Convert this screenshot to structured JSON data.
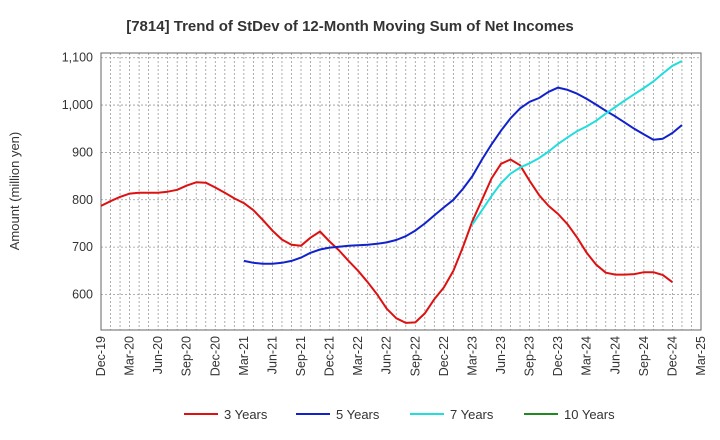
{
  "chart_data": {
    "type": "line",
    "title": "[7814]  Trend of StDev of 12-Month Moving Sum of Net Incomes",
    "xlabel": "",
    "ylabel": "Amount (million yen)",
    "ylim": [
      525,
      1110
    ],
    "yticks": [
      600,
      700,
      800,
      900,
      1000,
      1100
    ],
    "ytick_labels": [
      "600",
      "700",
      "800",
      "900",
      "1,000",
      "1,100"
    ],
    "x_start": "2019-12",
    "x_end": "2025-03",
    "xtick_labels": [
      "Dec-19",
      "Mar-20",
      "Jun-20",
      "Sep-20",
      "Dec-20",
      "Mar-21",
      "Jun-21",
      "Sep-21",
      "Dec-21",
      "Mar-22",
      "Jun-22",
      "Sep-22",
      "Dec-22",
      "Mar-23",
      "Jun-23",
      "Sep-23",
      "Dec-23",
      "Mar-24",
      "Jun-24",
      "Sep-24",
      "Dec-24",
      "Mar-25"
    ],
    "grid": true,
    "legend_position": "bottom",
    "series": [
      {
        "name": "3 Years",
        "color": "#dd1111",
        "points": [
          [
            "2019-12",
            787
          ],
          [
            "2020-01",
            797
          ],
          [
            "2020-02",
            806
          ],
          [
            "2020-03",
            813
          ],
          [
            "2020-04",
            815
          ],
          [
            "2020-05",
            815
          ],
          [
            "2020-06",
            815
          ],
          [
            "2020-07",
            817
          ],
          [
            "2020-08",
            821
          ],
          [
            "2020-09",
            830
          ],
          [
            "2020-10",
            837
          ],
          [
            "2020-11",
            836
          ],
          [
            "2020-12",
            826
          ],
          [
            "2021-01",
            815
          ],
          [
            "2021-02",
            803
          ],
          [
            "2021-03",
            793
          ],
          [
            "2021-04",
            778
          ],
          [
            "2021-05",
            757
          ],
          [
            "2021-06",
            735
          ],
          [
            "2021-07",
            716
          ],
          [
            "2021-08",
            705
          ],
          [
            "2021-09",
            703
          ],
          [
            "2021-10",
            720
          ],
          [
            "2021-11",
            733
          ],
          [
            "2021-12",
            712
          ],
          [
            "2022-01",
            693
          ],
          [
            "2022-02",
            671
          ],
          [
            "2022-03",
            650
          ],
          [
            "2022-04",
            626
          ],
          [
            "2022-05",
            600
          ],
          [
            "2022-06",
            570
          ],
          [
            "2022-07",
            550
          ],
          [
            "2022-08",
            540
          ],
          [
            "2022-09",
            541
          ],
          [
            "2022-10",
            560
          ],
          [
            "2022-11",
            590
          ],
          [
            "2022-12",
            615
          ],
          [
            "2023-01",
            650
          ],
          [
            "2023-02",
            700
          ],
          [
            "2023-03",
            755
          ],
          [
            "2023-04",
            800
          ],
          [
            "2023-05",
            845
          ],
          [
            "2023-06",
            876
          ],
          [
            "2023-07",
            885
          ],
          [
            "2023-08",
            873
          ],
          [
            "2023-09",
            840
          ],
          [
            "2023-10",
            810
          ],
          [
            "2023-11",
            787
          ],
          [
            "2023-12",
            770
          ],
          [
            "2024-01",
            748
          ],
          [
            "2024-02",
            720
          ],
          [
            "2024-03",
            688
          ],
          [
            "2024-04",
            663
          ],
          [
            "2024-05",
            646
          ],
          [
            "2024-06",
            642
          ],
          [
            "2024-07",
            642
          ],
          [
            "2024-08",
            643
          ],
          [
            "2024-09",
            647
          ],
          [
            "2024-10",
            647
          ],
          [
            "2024-11",
            641
          ],
          [
            "2024-12",
            626
          ]
        ]
      },
      {
        "name": "5 Years",
        "color": "#1122cc",
        "points": [
          [
            "2021-03",
            671
          ],
          [
            "2021-04",
            667
          ],
          [
            "2021-05",
            665
          ],
          [
            "2021-06",
            665
          ],
          [
            "2021-07",
            667
          ],
          [
            "2021-08",
            671
          ],
          [
            "2021-09",
            678
          ],
          [
            "2021-10",
            688
          ],
          [
            "2021-11",
            695
          ],
          [
            "2021-12",
            699
          ],
          [
            "2022-01",
            701
          ],
          [
            "2022-02",
            703
          ],
          [
            "2022-03",
            704
          ],
          [
            "2022-04",
            705
          ],
          [
            "2022-05",
            707
          ],
          [
            "2022-06",
            710
          ],
          [
            "2022-07",
            715
          ],
          [
            "2022-08",
            723
          ],
          [
            "2022-09",
            735
          ],
          [
            "2022-10",
            750
          ],
          [
            "2022-11",
            767
          ],
          [
            "2022-12",
            784
          ],
          [
            "2023-01",
            800
          ],
          [
            "2023-02",
            823
          ],
          [
            "2023-03",
            850
          ],
          [
            "2023-04",
            885
          ],
          [
            "2023-05",
            917
          ],
          [
            "2023-06",
            946
          ],
          [
            "2023-07",
            972
          ],
          [
            "2023-08",
            993
          ],
          [
            "2023-09",
            1007
          ],
          [
            "2023-10",
            1015
          ],
          [
            "2023-11",
            1028
          ],
          [
            "2023-12",
            1037
          ],
          [
            "2024-01",
            1032
          ],
          [
            "2024-02",
            1024
          ],
          [
            "2024-03",
            1013
          ],
          [
            "2024-04",
            1001
          ],
          [
            "2024-05",
            988
          ],
          [
            "2024-06",
            976
          ],
          [
            "2024-07",
            963
          ],
          [
            "2024-08",
            950
          ],
          [
            "2024-09",
            938
          ],
          [
            "2024-10",
            927
          ],
          [
            "2024-11",
            929
          ],
          [
            "2024-12",
            941
          ],
          [
            "2025-01",
            958
          ]
        ]
      },
      {
        "name": "7 Years",
        "color": "#22dddd",
        "points": [
          [
            "2023-03",
            748
          ],
          [
            "2023-04",
            778
          ],
          [
            "2023-05",
            808
          ],
          [
            "2023-06",
            835
          ],
          [
            "2023-07",
            855
          ],
          [
            "2023-08",
            868
          ],
          [
            "2023-09",
            877
          ],
          [
            "2023-10",
            888
          ],
          [
            "2023-11",
            902
          ],
          [
            "2023-12",
            918
          ],
          [
            "2024-01",
            932
          ],
          [
            "2024-02",
            945
          ],
          [
            "2024-03",
            955
          ],
          [
            "2024-04",
            967
          ],
          [
            "2024-05",
            982
          ],
          [
            "2024-06",
            996
          ],
          [
            "2024-07",
            1010
          ],
          [
            "2024-08",
            1023
          ],
          [
            "2024-09",
            1036
          ],
          [
            "2024-10",
            1050
          ],
          [
            "2024-11",
            1067
          ],
          [
            "2024-12",
            1083
          ],
          [
            "2025-01",
            1093
          ]
        ]
      },
      {
        "name": "10 Years",
        "color": "#228822",
        "points": []
      }
    ]
  }
}
